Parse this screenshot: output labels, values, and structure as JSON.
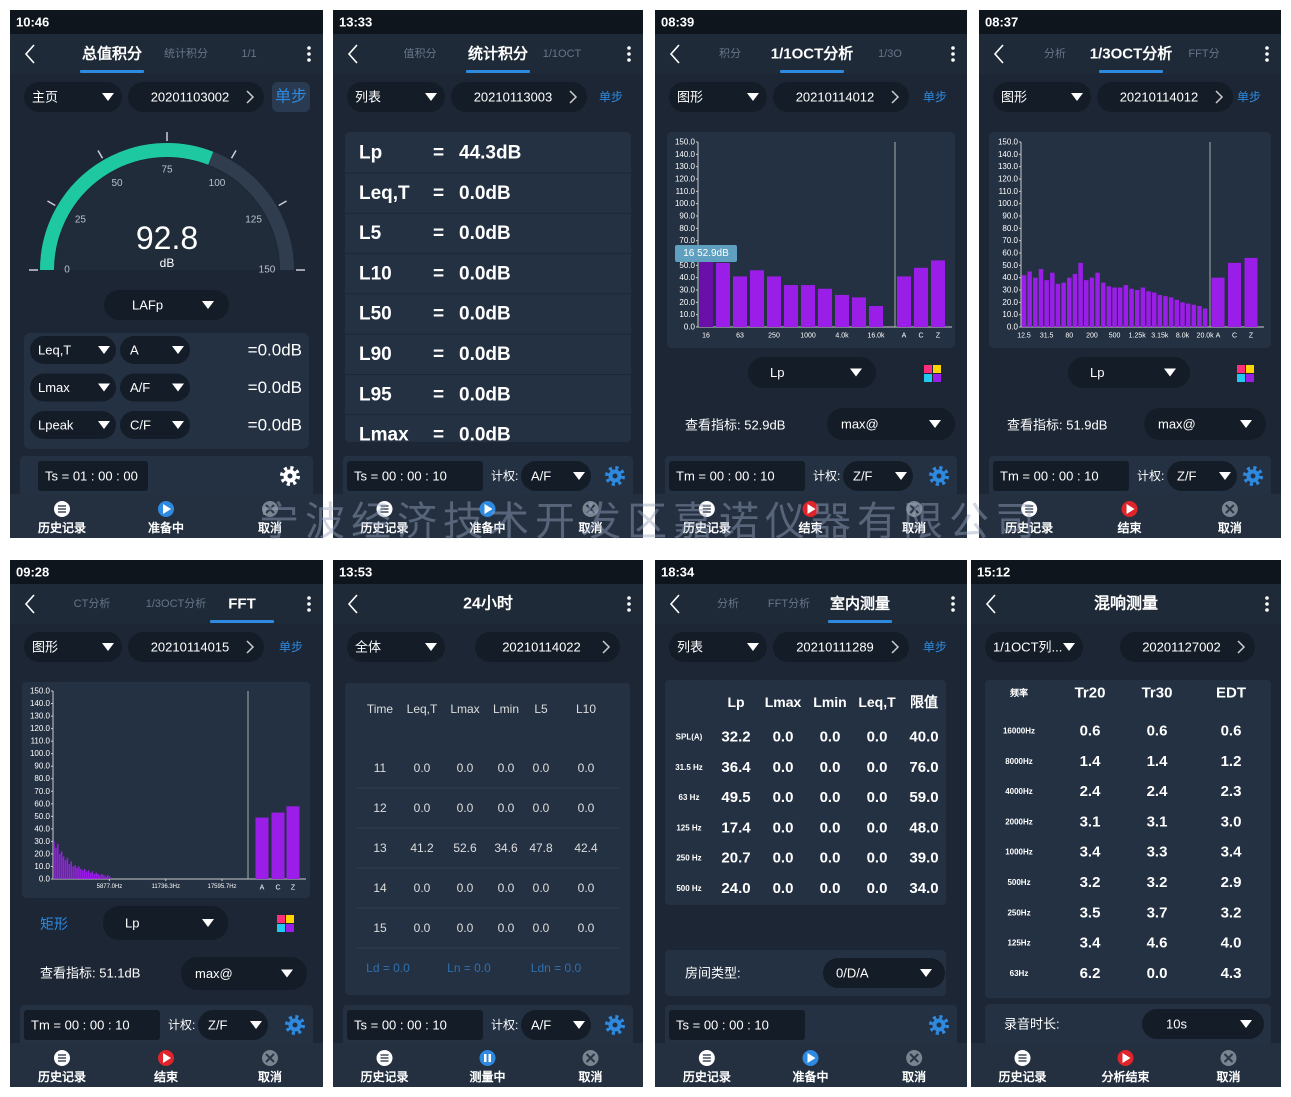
{
  "watermark": "宁波经济技术开发区嘉诺仪器有限公司",
  "screens": [
    {
      "time": "10:46",
      "tabs": [
        "总值积分",
        "统计积分",
        "1/1"
      ],
      "selector": "主页",
      "record": "20201103002",
      "step": "单步",
      "gauge": {
        "value": 92.8,
        "unit": "dB",
        "lim": [
          0,
          150
        ],
        "ticks": [
          0,
          25,
          50,
          75,
          100,
          125,
          150
        ],
        "color": "#1ec8a0"
      },
      "mode": "LAFp",
      "rows": [
        [
          "Leq,T",
          "A",
          "=0.0dB"
        ],
        [
          "Lmax",
          "A/F",
          "=0.0dB"
        ],
        [
          "Lpeak",
          "C/F",
          "=0.0dB"
        ]
      ],
      "timer": "Ts = 01 : 00 : 00",
      "buttons": [
        "历史记录",
        "准备中",
        "取消"
      ]
    },
    {
      "time": "13:33",
      "tabs": [
        "值积分",
        "统计积分",
        "1/1OCT"
      ],
      "selector": "列表",
      "record": "20210113003",
      "step": "单步",
      "list": [
        [
          "Lp",
          "=",
          "44.3dB"
        ],
        [
          "Leq,T",
          "=",
          "0.0dB"
        ],
        [
          "L5",
          "=",
          "0.0dB"
        ],
        [
          "L10",
          "=",
          "0.0dB"
        ],
        [
          "L50",
          "=",
          "0.0dB"
        ],
        [
          "L90",
          "=",
          "0.0dB"
        ],
        [
          "L95",
          "=",
          "0.0dB"
        ],
        [
          "Lmax",
          "=",
          "0.0dB"
        ]
      ],
      "timer": "Ts = 00 : 00 : 10",
      "weighting_label": "计权:",
      "weighting": "A/F",
      "buttons": [
        "历史记录",
        "准备中",
        "取消"
      ]
    },
    {
      "time": "08:39",
      "tabs": [
        "积分",
        "1/1OCT分析",
        "1/3O"
      ],
      "selector": "图形",
      "record": "20210114012",
      "step": "单步",
      "chart": {
        "type": "bar",
        "ylim": [
          0,
          150
        ],
        "yticks": [
          {
            "value": 0,
            "label": "0.0"
          },
          {
            "value": 10,
            "label": "10.0"
          },
          {
            "value": 20,
            "label": "20.0"
          },
          {
            "value": 30,
            "label": "30.0"
          },
          {
            "value": 40,
            "label": "40.0"
          },
          {
            "value": 50,
            "label": "50.0"
          },
          {
            "value": 60,
            "label": "60.0"
          },
          {
            "value": 70,
            "label": "70.0"
          },
          {
            "value": 80,
            "label": "80.0"
          },
          {
            "value": 90,
            "label": "90.0"
          },
          {
            "value": 100,
            "label": "100.0"
          },
          {
            "value": 110,
            "label": "110.0"
          },
          {
            "value": 120,
            "label": "120.0"
          },
          {
            "value": 130,
            "label": "130.0"
          },
          {
            "value": 140,
            "label": "140.0"
          },
          {
            "value": 150,
            "label": "150.0"
          }
        ],
        "categories": [
          "16",
          null,
          "63",
          null,
          "250",
          null,
          "1000",
          null,
          "4.0k",
          null,
          "16.0k",
          "A",
          "C",
          "Z"
        ],
        "values": [
          52.9,
          52,
          41,
          46,
          41,
          34,
          34,
          31,
          26,
          24,
          17,
          41,
          48,
          54
        ],
        "color": "#9b1ee8"
      },
      "tooltip": "16 52.9dB",
      "metric": "Lp",
      "view": "查看指标: 52.9dB",
      "view_mode": "max@",
      "timer": "Tm = 00 : 00 : 10",
      "weighting_label": "计权:",
      "weighting": "Z/F",
      "buttons": [
        "历史记录",
        "结束",
        "取消"
      ]
    },
    {
      "time": "08:37",
      "tabs": [
        "分析",
        "1/3OCT分析",
        "FFT分"
      ],
      "selector": "图形",
      "record": "20210114012",
      "step": "单步",
      "chart": {
        "type": "bar",
        "ylim": [
          0,
          150
        ],
        "yticks": [
          {
            "value": 0,
            "label": "0.0"
          },
          {
            "value": 10,
            "label": "10.0"
          },
          {
            "value": 20,
            "label": "20.0"
          },
          {
            "value": 30,
            "label": "30.0"
          },
          {
            "value": 40,
            "label": "40.0"
          },
          {
            "value": 50,
            "label": "50.0"
          },
          {
            "value": 60,
            "label": "60.0"
          },
          {
            "value": 70,
            "label": "70.0"
          },
          {
            "value": 80,
            "label": "80.0"
          },
          {
            "value": 90,
            "label": "90.0"
          },
          {
            "value": 100,
            "label": "100.0"
          },
          {
            "value": 110,
            "label": "110.0"
          },
          {
            "value": 120,
            "label": "120.0"
          },
          {
            "value": 130,
            "label": "130.0"
          },
          {
            "value": 140,
            "label": "140.0"
          },
          {
            "value": 150,
            "label": "150.0"
          }
        ],
        "categories": [
          "12.5",
          null,
          null,
          null,
          "31.5",
          null,
          null,
          null,
          "80",
          null,
          null,
          null,
          "200",
          null,
          null,
          null,
          "500",
          null,
          null,
          null,
          "1.25k",
          null,
          null,
          null,
          "3.15k",
          null,
          null,
          null,
          "8.0k",
          null,
          null,
          null,
          "20.0k",
          "A",
          "C",
          "Z"
        ],
        "values": [
          42,
          45,
          40,
          47,
          38,
          44,
          35,
          36,
          40,
          43,
          52,
          38,
          40,
          44,
          36,
          33,
          32,
          32,
          34,
          31,
          30,
          32,
          29,
          28,
          26,
          25,
          24,
          22,
          20,
          19,
          18,
          17,
          15,
          40,
          52,
          56
        ],
        "color": "#9b1ee8"
      },
      "metric": "Lp",
      "view": "查看指标: 51.9dB",
      "view_mode": "max@",
      "timer": "Tm = 00 : 00 : 10",
      "weighting_label": "计权:",
      "weighting": "Z/F",
      "buttons": [
        "历史记录",
        "结束",
        "取消"
      ]
    },
    {
      "time": "09:28",
      "tabs": [
        "CT分析",
        "1/3OCT分析",
        "FFT"
      ],
      "selector": "图形",
      "record": "20210114015",
      "step": "单步",
      "chart": {
        "type": "bar",
        "ylim": [
          0,
          150
        ],
        "yticks": [
          {
            "value": 0,
            "label": "0.0"
          },
          {
            "value": 10,
            "label": "10.0"
          },
          {
            "value": 20,
            "label": "20.0"
          },
          {
            "value": 30,
            "label": "30.0"
          },
          {
            "value": 40,
            "label": "40.0"
          },
          {
            "value": 50,
            "label": "50.0"
          },
          {
            "value": 60,
            "label": "60.0"
          },
          {
            "value": 70,
            "label": "70.0"
          },
          {
            "value": 80,
            "label": "80.0"
          },
          {
            "value": 90,
            "label": "90.0"
          },
          {
            "value": 100,
            "label": "100.0"
          },
          {
            "value": 110,
            "label": "110.0"
          },
          {
            "value": 120,
            "label": "120.0"
          },
          {
            "value": 130,
            "label": "130.0"
          },
          {
            "value": 140,
            "label": "140.0"
          },
          {
            "value": 150,
            "label": "150.0"
          }
        ],
        "xlim": [
          0,
          20300
        ],
        "xticks": [
          {
            "value": 5877,
            "label": "5877.0Hz"
          },
          {
            "value": 11736.3,
            "label": "11736.3Hz"
          },
          {
            "value": 17595.7,
            "label": "17595.7Hz"
          }
        ],
        "spectrum": {
          "x": [
            100,
            300,
            500,
            700,
            900,
            1100,
            1300,
            1500,
            1700,
            1900,
            2100,
            2300,
            2500,
            2700,
            2900,
            3100,
            3300,
            3500,
            3700,
            3900,
            4100,
            4300,
            4500,
            4700,
            4900,
            5100,
            5300,
            5500,
            5700,
            5900
          ],
          "values": [
            30,
            25,
            28,
            20,
            22,
            18,
            15,
            17,
            12,
            14,
            10,
            11,
            9,
            10,
            8,
            7,
            8,
            6,
            7,
            5,
            6,
            4,
            5,
            4,
            3,
            4,
            3,
            2,
            3,
            2
          ]
        },
        "categories": [
          "A",
          "C",
          "Z"
        ],
        "values": [
          49,
          53,
          58
        ],
        "color": "#9b1ee8"
      },
      "shape": "矩形",
      "metric": "Lp",
      "view": "查看指标: 51.1dB",
      "view_mode": "max@",
      "timer": "Tm = 00 : 00 : 10",
      "weighting_label": "计权:",
      "weighting": "Z/F",
      "buttons": [
        "历史记录",
        "结束",
        "取消"
      ]
    },
    {
      "time": "13:53",
      "title": "24小时",
      "selector": "全体",
      "record": "20210114022",
      "table": {
        "header": [
          "Time",
          "Leq,T",
          "Lmax",
          "Lmin",
          "L5",
          "L10"
        ],
        "rows": [
          [
            "11",
            "0.0",
            "0.0",
            "0.0",
            "0.0",
            "0.0"
          ],
          [
            "12",
            "0.0",
            "0.0",
            "0.0",
            "0.0",
            "0.0"
          ],
          [
            "13",
            "41.2",
            "52.6",
            "34.6",
            "47.8",
            "42.4"
          ],
          [
            "14",
            "0.0",
            "0.0",
            "0.0",
            "0.0",
            "0.0"
          ],
          [
            "15",
            "0.0",
            "0.0",
            "0.0",
            "0.0",
            "0.0"
          ]
        ]
      },
      "footer": [
        "Ld = 0.0",
        "Ln = 0.0",
        "Ldn = 0.0"
      ],
      "timer": "Ts = 00 : 00 : 10",
      "weighting_label": "计权:",
      "weighting": "A/F",
      "buttons": [
        "历史记录",
        "测量中",
        "取消"
      ]
    },
    {
      "time": "18:34",
      "tabs": [
        "分析",
        "FFT分析",
        "室内测量"
      ],
      "selector": "列表",
      "record": "20210111289",
      "step": "单步",
      "table": {
        "header": [
          "Lp",
          "Lmax",
          "Lmin",
          "Leq,T",
          "限值"
        ],
        "rows": [
          [
            "SPL(A)",
            "32.2",
            "0.0",
            "0.0",
            "0.0",
            "40.0"
          ],
          [
            "31.5 Hz",
            "36.4",
            "0.0",
            "0.0",
            "0.0",
            "76.0"
          ],
          [
            "63 Hz",
            "49.5",
            "0.0",
            "0.0",
            "0.0",
            "59.0"
          ],
          [
            "125 Hz",
            "17.4",
            "0.0",
            "0.0",
            "0.0",
            "48.0"
          ],
          [
            "250 Hz",
            "20.7",
            "0.0",
            "0.0",
            "0.0",
            "39.0"
          ],
          [
            "500 Hz",
            "24.0",
            "0.0",
            "0.0",
            "0.0",
            "34.0"
          ]
        ]
      },
      "room_label": "房间类型:",
      "room": "0/D/A",
      "timer": "Ts = 00 : 00 : 10",
      "buttons": [
        "历史记录",
        "准备中",
        "取消"
      ]
    },
    {
      "time": "15:12",
      "title": "混响测量",
      "selector": "1/1OCT列...",
      "record": "20201127002",
      "table": {
        "header": [
          "频率",
          "Tr20",
          "Tr30",
          "EDT"
        ],
        "rows": [
          [
            "16000Hz",
            "0.6",
            "0.6",
            "0.6"
          ],
          [
            "8000Hz",
            "1.4",
            "1.4",
            "1.2"
          ],
          [
            "4000Hz",
            "2.4",
            "2.4",
            "2.3"
          ],
          [
            "2000Hz",
            "3.1",
            "3.1",
            "3.0"
          ],
          [
            "1000Hz",
            "3.4",
            "3.3",
            "3.4"
          ],
          [
            "500Hz",
            "3.2",
            "3.2",
            "2.9"
          ],
          [
            "250Hz",
            "3.5",
            "3.7",
            "3.2"
          ],
          [
            "125Hz",
            "3.4",
            "4.6",
            "4.0"
          ],
          [
            "63Hz",
            "6.2",
            "0.0",
            "4.3"
          ]
        ]
      },
      "rec_label": "录音时长:",
      "rec": "10s",
      "buttons": [
        "历史记录",
        "分析结束",
        "取消"
      ]
    }
  ]
}
